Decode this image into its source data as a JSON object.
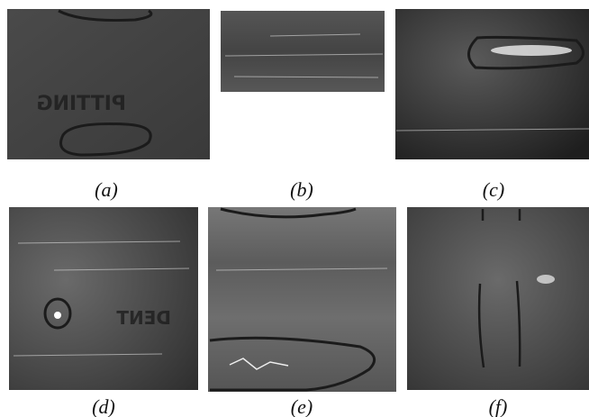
{
  "panels": [
    {
      "caption": "(a)",
      "label": "PITTING"
    },
    {
      "caption": "(b)"
    },
    {
      "caption": "(c)"
    },
    {
      "caption": "(d)",
      "label": "DENT"
    },
    {
      "caption": "(e)"
    },
    {
      "caption": "(f)"
    }
  ]
}
